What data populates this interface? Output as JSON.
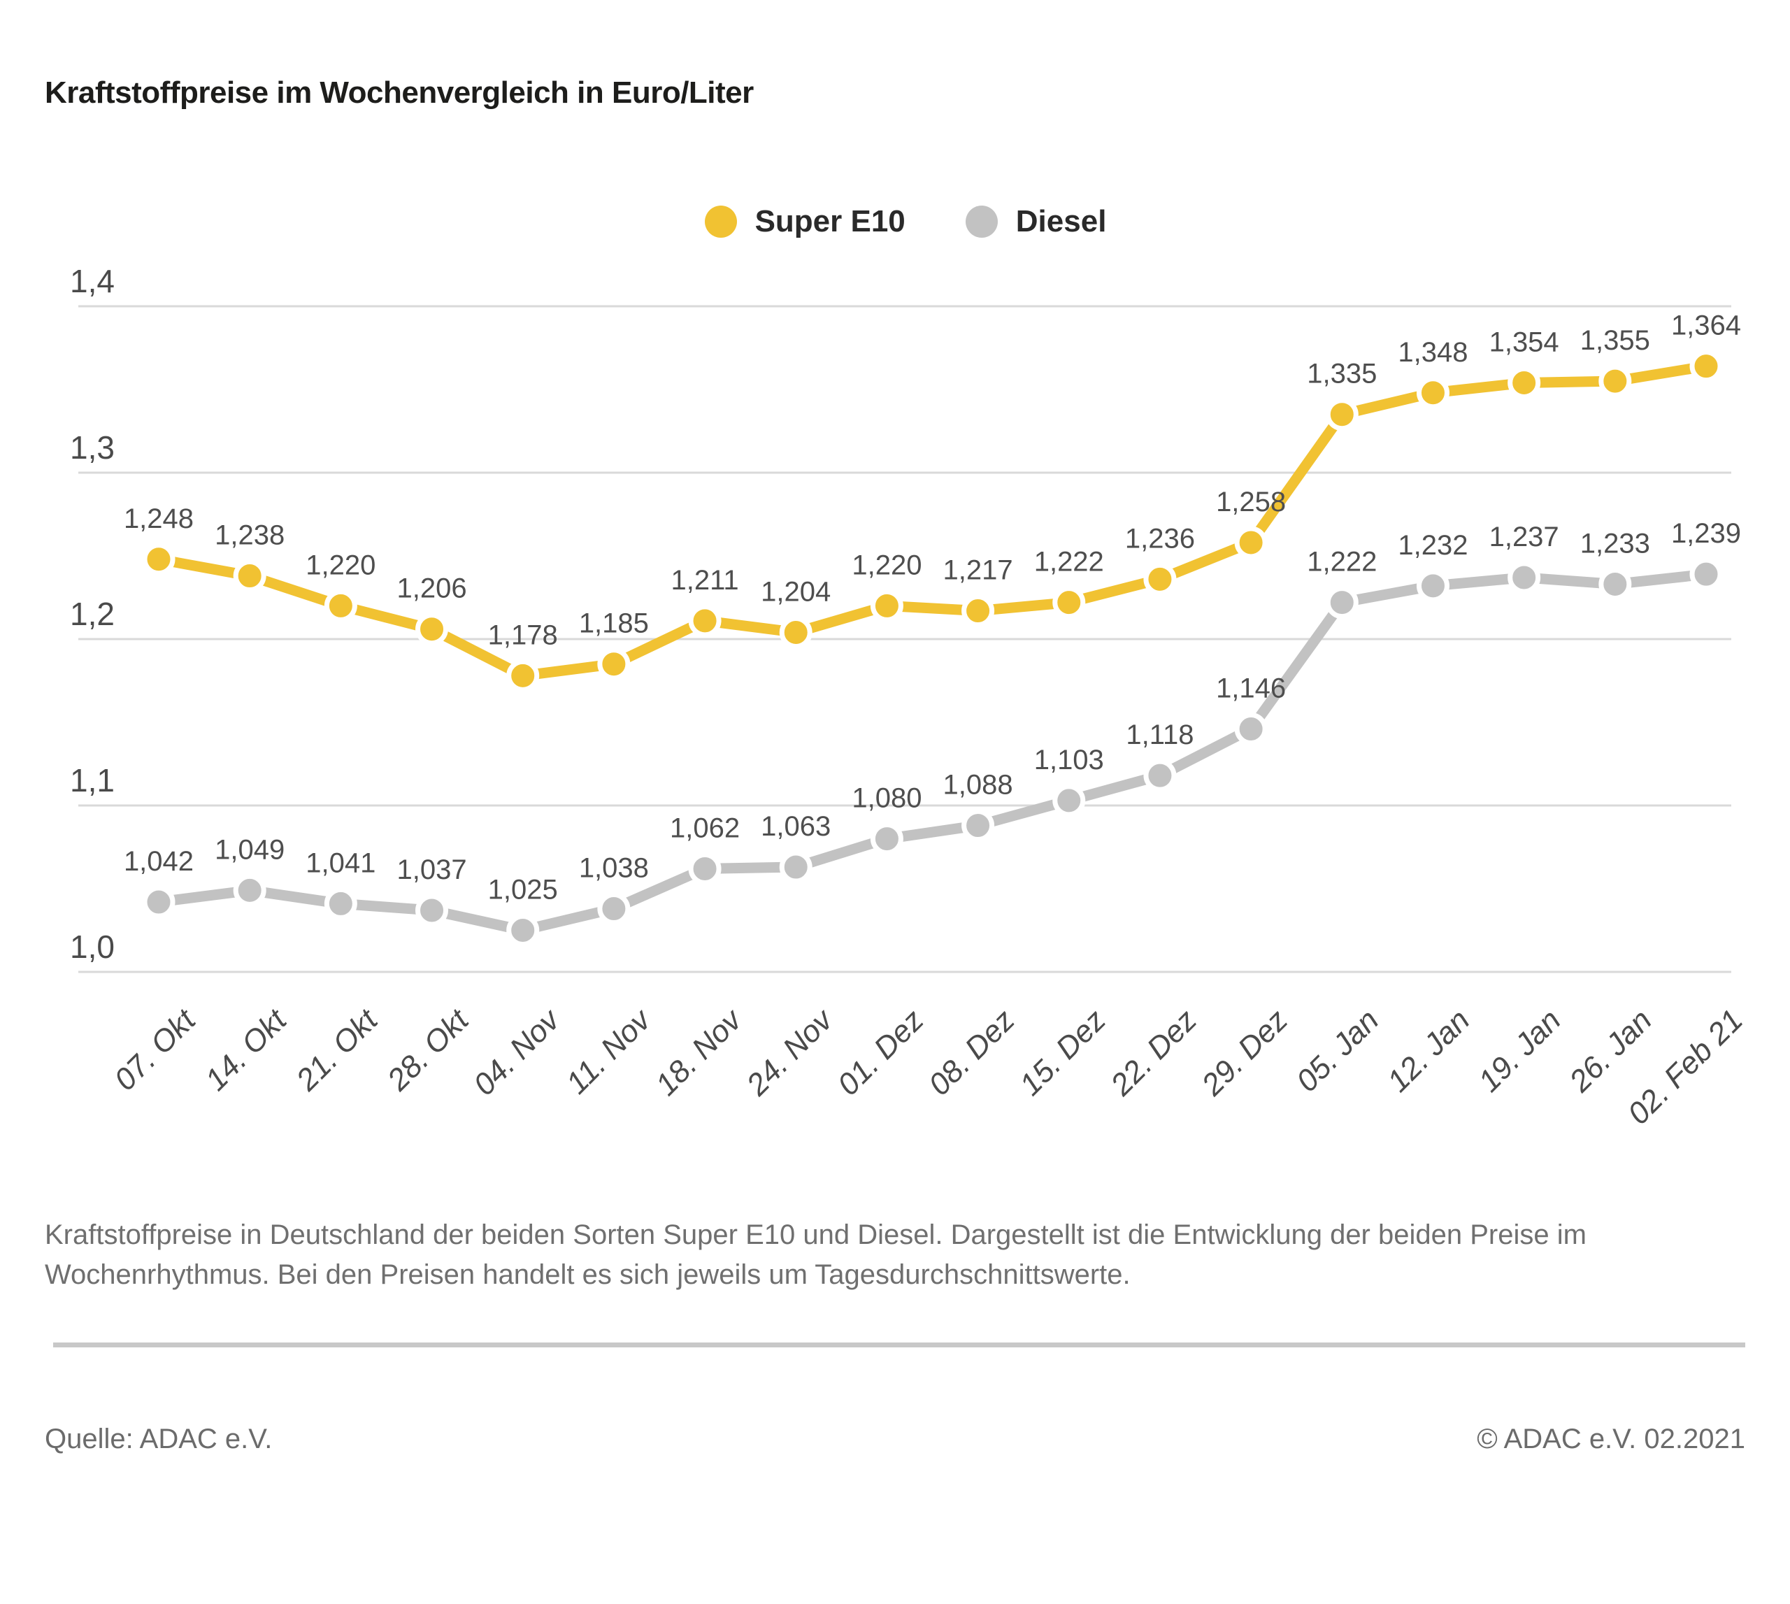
{
  "title": "Kraftstoffpreise im Wochenvergleich in Euro/Liter",
  "legend": {
    "items": [
      {
        "label": "Super E10",
        "color": "#F1C232"
      },
      {
        "label": "Diesel",
        "color": "#C2C2C2"
      }
    ]
  },
  "chart_data": {
    "type": "line",
    "title": "Kraftstoffpreise im Wochenvergleich in Euro/Liter",
    "unit": "Euro/Liter",
    "categories": [
      "07. Okt",
      "14. Okt",
      "21. Okt",
      "28. Okt",
      "04. Nov",
      "11. Nov",
      "18. Nov",
      "24. Nov",
      "01. Dez",
      "08. Dez",
      "15. Dez",
      "22. Dez",
      "29. Dez",
      "05. Jan",
      "12. Jan",
      "19. Jan",
      "26. Jan",
      "02. Feb 21"
    ],
    "series": [
      {
        "name": "Super E10",
        "color": "#F1C232",
        "values": [
          1.248,
          1.238,
          1.22,
          1.206,
          1.178,
          1.185,
          1.211,
          1.204,
          1.22,
          1.217,
          1.222,
          1.236,
          1.258,
          1.335,
          1.348,
          1.354,
          1.355,
          1.364
        ]
      },
      {
        "name": "Diesel",
        "color": "#C2C2C2",
        "values": [
          1.042,
          1.049,
          1.041,
          1.037,
          1.025,
          1.038,
          1.062,
          1.063,
          1.08,
          1.088,
          1.103,
          1.118,
          1.146,
          1.222,
          1.232,
          1.237,
          1.233,
          1.239
        ]
      }
    ],
    "ylim": [
      1.0,
      1.4
    ],
    "yticks": [
      {
        "value": 1.4,
        "label": "1,4"
      },
      {
        "value": 1.3,
        "label": "1,3"
      },
      {
        "value": 1.2,
        "label": "1,2"
      },
      {
        "value": 1.1,
        "label": "1,1"
      },
      {
        "value": 1.0,
        "label": "1,0"
      }
    ],
    "grid": true,
    "grid_color": "#D9D9D9",
    "legend_position": "top-center",
    "point_labels": true,
    "decimal_separator": ","
  },
  "caption": "Kraftstoffpreise in Deutschland der beiden Sorten Super E10 und Diesel. Dargestellt ist die Entwicklung der beiden Preise im Wochenrhythmus. Bei den Preisen handelt es sich jeweils um Tagesdurchschnittswerte.",
  "footer": {
    "source": "Quelle: ADAC e.V.",
    "copyright": "© ADAC e.V. 02.2021"
  }
}
